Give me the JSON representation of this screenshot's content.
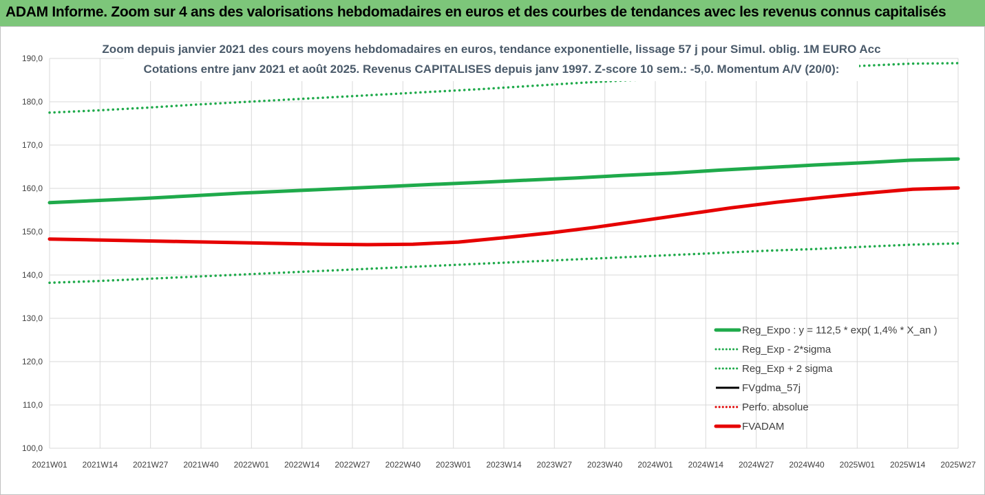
{
  "header": {
    "title": "ADAM Informe. Zoom sur 4 ans des valorisations hebdomadaires en euros et des courbes de tendances avec les revenus connus capitalisés"
  },
  "chart_data": {
    "type": "line",
    "subtitle_line1": "Zoom depuis janvier 2021 des cours moyens hebdomadaires en euros, tendance exponentielle, lissage 57 j pour Simul. oblig. 1M EURO Acc",
    "subtitle_line2": "Cotations entre janv 2021 et août 2025.  Revenus CAPITALISES depuis janv 1997. Z-score 10 sem.: -5,0. Momentum A/V (20/0):",
    "ylim": [
      100,
      190
    ],
    "y_ticks": [
      "100,0",
      "110,0",
      "120,0",
      "130,0",
      "140,0",
      "150,0",
      "160,0",
      "170,0",
      "180,0",
      "190,0"
    ],
    "x_ticks": [
      "2021W01",
      "2021W14",
      "2021W27",
      "2021W40",
      "2022W01",
      "2022W14",
      "2022W27",
      "2022W40",
      "2023W01",
      "2023W14",
      "2023W27",
      "2023W40",
      "2024W01",
      "2024W14",
      "2024W27",
      "2024W40",
      "2025W01",
      "2025W14",
      "2025W27"
    ],
    "grid": true,
    "legend_position": "bottom-right",
    "series": [
      {
        "name": "Reg_Expo : y = 112,5 * exp( 1,4% *  X_an )",
        "color": "#1faa4b",
        "style": "solid-thick",
        "in_legend": true,
        "values": [
          156.7,
          157.2,
          157.7,
          158.3,
          158.9,
          159.4,
          159.9,
          160.4,
          160.9,
          161.4,
          161.9,
          162.4,
          163.0,
          163.5,
          164.2,
          164.8,
          165.4,
          165.9,
          166.5,
          166.8
        ]
      },
      {
        "name": "Reg_Exp - 2*sigma",
        "color": "#1faa4b",
        "style": "dotted",
        "in_legend": true,
        "values": [
          138.2,
          138.6,
          139.1,
          139.6,
          140.1,
          140.6,
          141.1,
          141.6,
          142.1,
          142.6,
          143.1,
          143.6,
          144.1,
          144.6,
          145.1,
          145.6,
          146.0,
          146.5,
          147.0,
          147.3
        ]
      },
      {
        "name": "Reg_Exp + 2 sigma",
        "color": "#1faa4b",
        "style": "dotted",
        "in_legend": true,
        "values": [
          177.5,
          178.0,
          178.6,
          179.3,
          179.9,
          180.5,
          181.1,
          181.7,
          182.3,
          182.9,
          183.6,
          184.3,
          184.9,
          185.3,
          186.2,
          187.0,
          187.7,
          188.3,
          188.8,
          188.9
        ]
      },
      {
        "name": "FVgdma_57j",
        "color": "#000000",
        "style": "solid",
        "in_legend": true,
        "values": []
      },
      {
        "name": "Perfo. absolue",
        "color": "#e00000",
        "style": "dotted",
        "in_legend": true,
        "values": []
      },
      {
        "name": "FVADAM",
        "color": "#e60000",
        "style": "solid-thick",
        "in_legend": true,
        "values": [
          148.3,
          148.1,
          147.9,
          147.7,
          147.5,
          147.3,
          147.1,
          147.0,
          147.1,
          147.6,
          148.6,
          149.7,
          151.0,
          152.5,
          154.0,
          155.5,
          156.8,
          157.9,
          158.9,
          159.8,
          160.1
        ]
      }
    ],
    "x_point_counts": {
      "note": ""
    }
  }
}
